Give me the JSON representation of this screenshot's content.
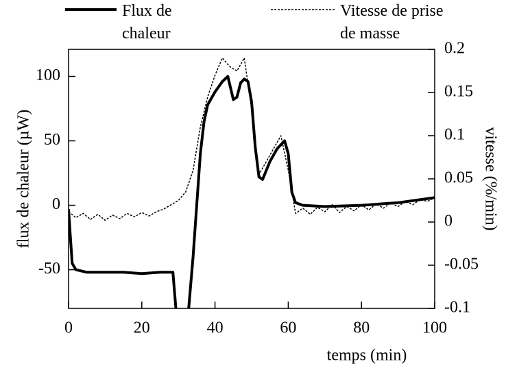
{
  "chart_data": {
    "type": "line",
    "x_label": "temps (min)",
    "y_label": "flux de chaleur (µW)",
    "y2_label": "vitesse (%/min)",
    "xlim": [
      0,
      100
    ],
    "xticks": [
      0,
      20,
      40,
      60,
      80,
      100
    ],
    "ylim": [
      -80,
      121
    ],
    "yticks": [
      -50,
      0,
      50,
      100
    ],
    "y2lim": [
      -0.1,
      0.2
    ],
    "y2ticks": [
      -0.1,
      -0.05,
      0,
      0.05,
      0.1,
      0.15,
      0.2
    ],
    "series": [
      {
        "name": "Flux de chaleur",
        "color": "#000000",
        "style": "solid",
        "x": [
          0,
          0.5,
          1,
          2,
          5,
          10,
          15,
          20,
          25,
          28.5,
          29.3,
          31,
          32.8,
          34,
          35,
          36,
          37,
          38,
          40,
          42,
          43.5,
          45,
          46,
          47,
          48,
          49,
          50,
          51,
          52,
          53,
          55,
          57,
          59,
          60,
          61,
          62,
          64,
          70,
          80,
          90,
          100
        ],
        "values": [
          -3,
          -25,
          -45,
          -50,
          -52,
          -52,
          -52,
          -53,
          -52,
          -52,
          -80,
          null,
          -80,
          -40,
          0,
          40,
          65,
          78,
          88,
          96,
          100,
          82,
          84,
          95,
          98,
          96,
          80,
          45,
          22,
          20,
          34,
          44,
          50,
          40,
          10,
          2,
          0,
          -1,
          0,
          2,
          6
        ]
      },
      {
        "name": "Vitesse de prise de masse",
        "color": "#000000",
        "style": "dotted",
        "axis": "y2",
        "x": [
          0,
          2,
          4,
          6,
          8,
          10,
          12,
          14,
          16,
          18,
          20,
          22,
          24,
          26,
          28,
          30,
          32,
          34,
          36,
          38,
          40,
          42,
          44,
          46,
          48,
          50,
          52,
          54,
          56,
          58,
          60,
          62,
          64,
          66,
          68,
          70,
          72,
          74,
          76,
          78,
          80,
          82,
          84,
          86,
          88,
          90,
          92,
          94,
          96,
          98,
          100
        ],
        "values": [
          0.012,
          0.005,
          0.01,
          0.003,
          0.009,
          0.002,
          0.008,
          0.004,
          0.01,
          0.006,
          0.011,
          0.007,
          0.012,
          0.015,
          0.02,
          0.025,
          0.035,
          0.06,
          0.11,
          0.145,
          0.17,
          0.19,
          0.18,
          0.175,
          0.19,
          0.13,
          0.055,
          0.07,
          0.085,
          0.1,
          0.06,
          0.01,
          0.016,
          0.009,
          0.017,
          0.012,
          0.02,
          0.011,
          0.018,
          0.013,
          0.02,
          0.014,
          0.021,
          0.016,
          0.022,
          0.018,
          0.024,
          0.02,
          0.026,
          0.024,
          0.028
        ]
      }
    ]
  }
}
